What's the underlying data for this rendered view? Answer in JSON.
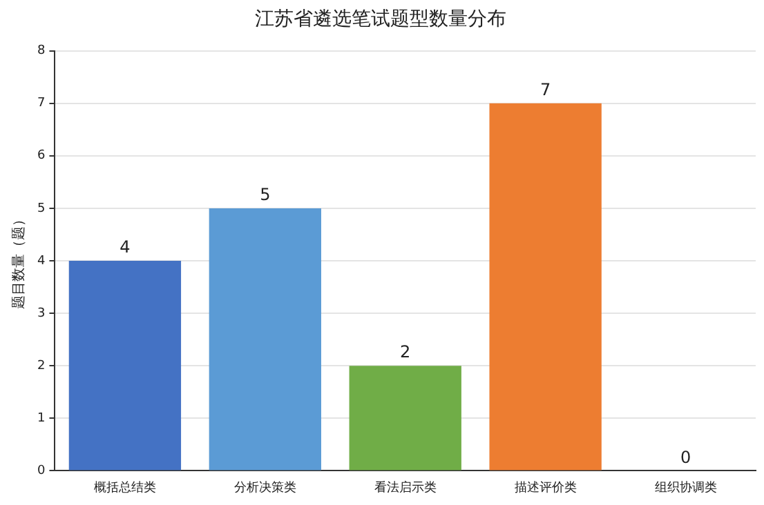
{
  "chart_data": {
    "type": "bar",
    "title": "江苏省遴选笔试题型数量分布",
    "ylabel": "题目数量（题）",
    "categories": [
      "概括总结类",
      "分析决策类",
      "看法启示类",
      "描述评价类",
      "组织协调类"
    ],
    "values": [
      4,
      5,
      2,
      7,
      0
    ],
    "colors": [
      "#4472c4",
      "#5b9bd5",
      "#70ad47",
      "#ed7d31",
      "#ffc000"
    ],
    "ylim": [
      0,
      8
    ],
    "yticks": [
      0,
      1,
      2,
      3,
      4,
      5,
      6,
      7,
      8
    ],
    "grid": "y",
    "data_labels": true,
    "legend": false
  }
}
